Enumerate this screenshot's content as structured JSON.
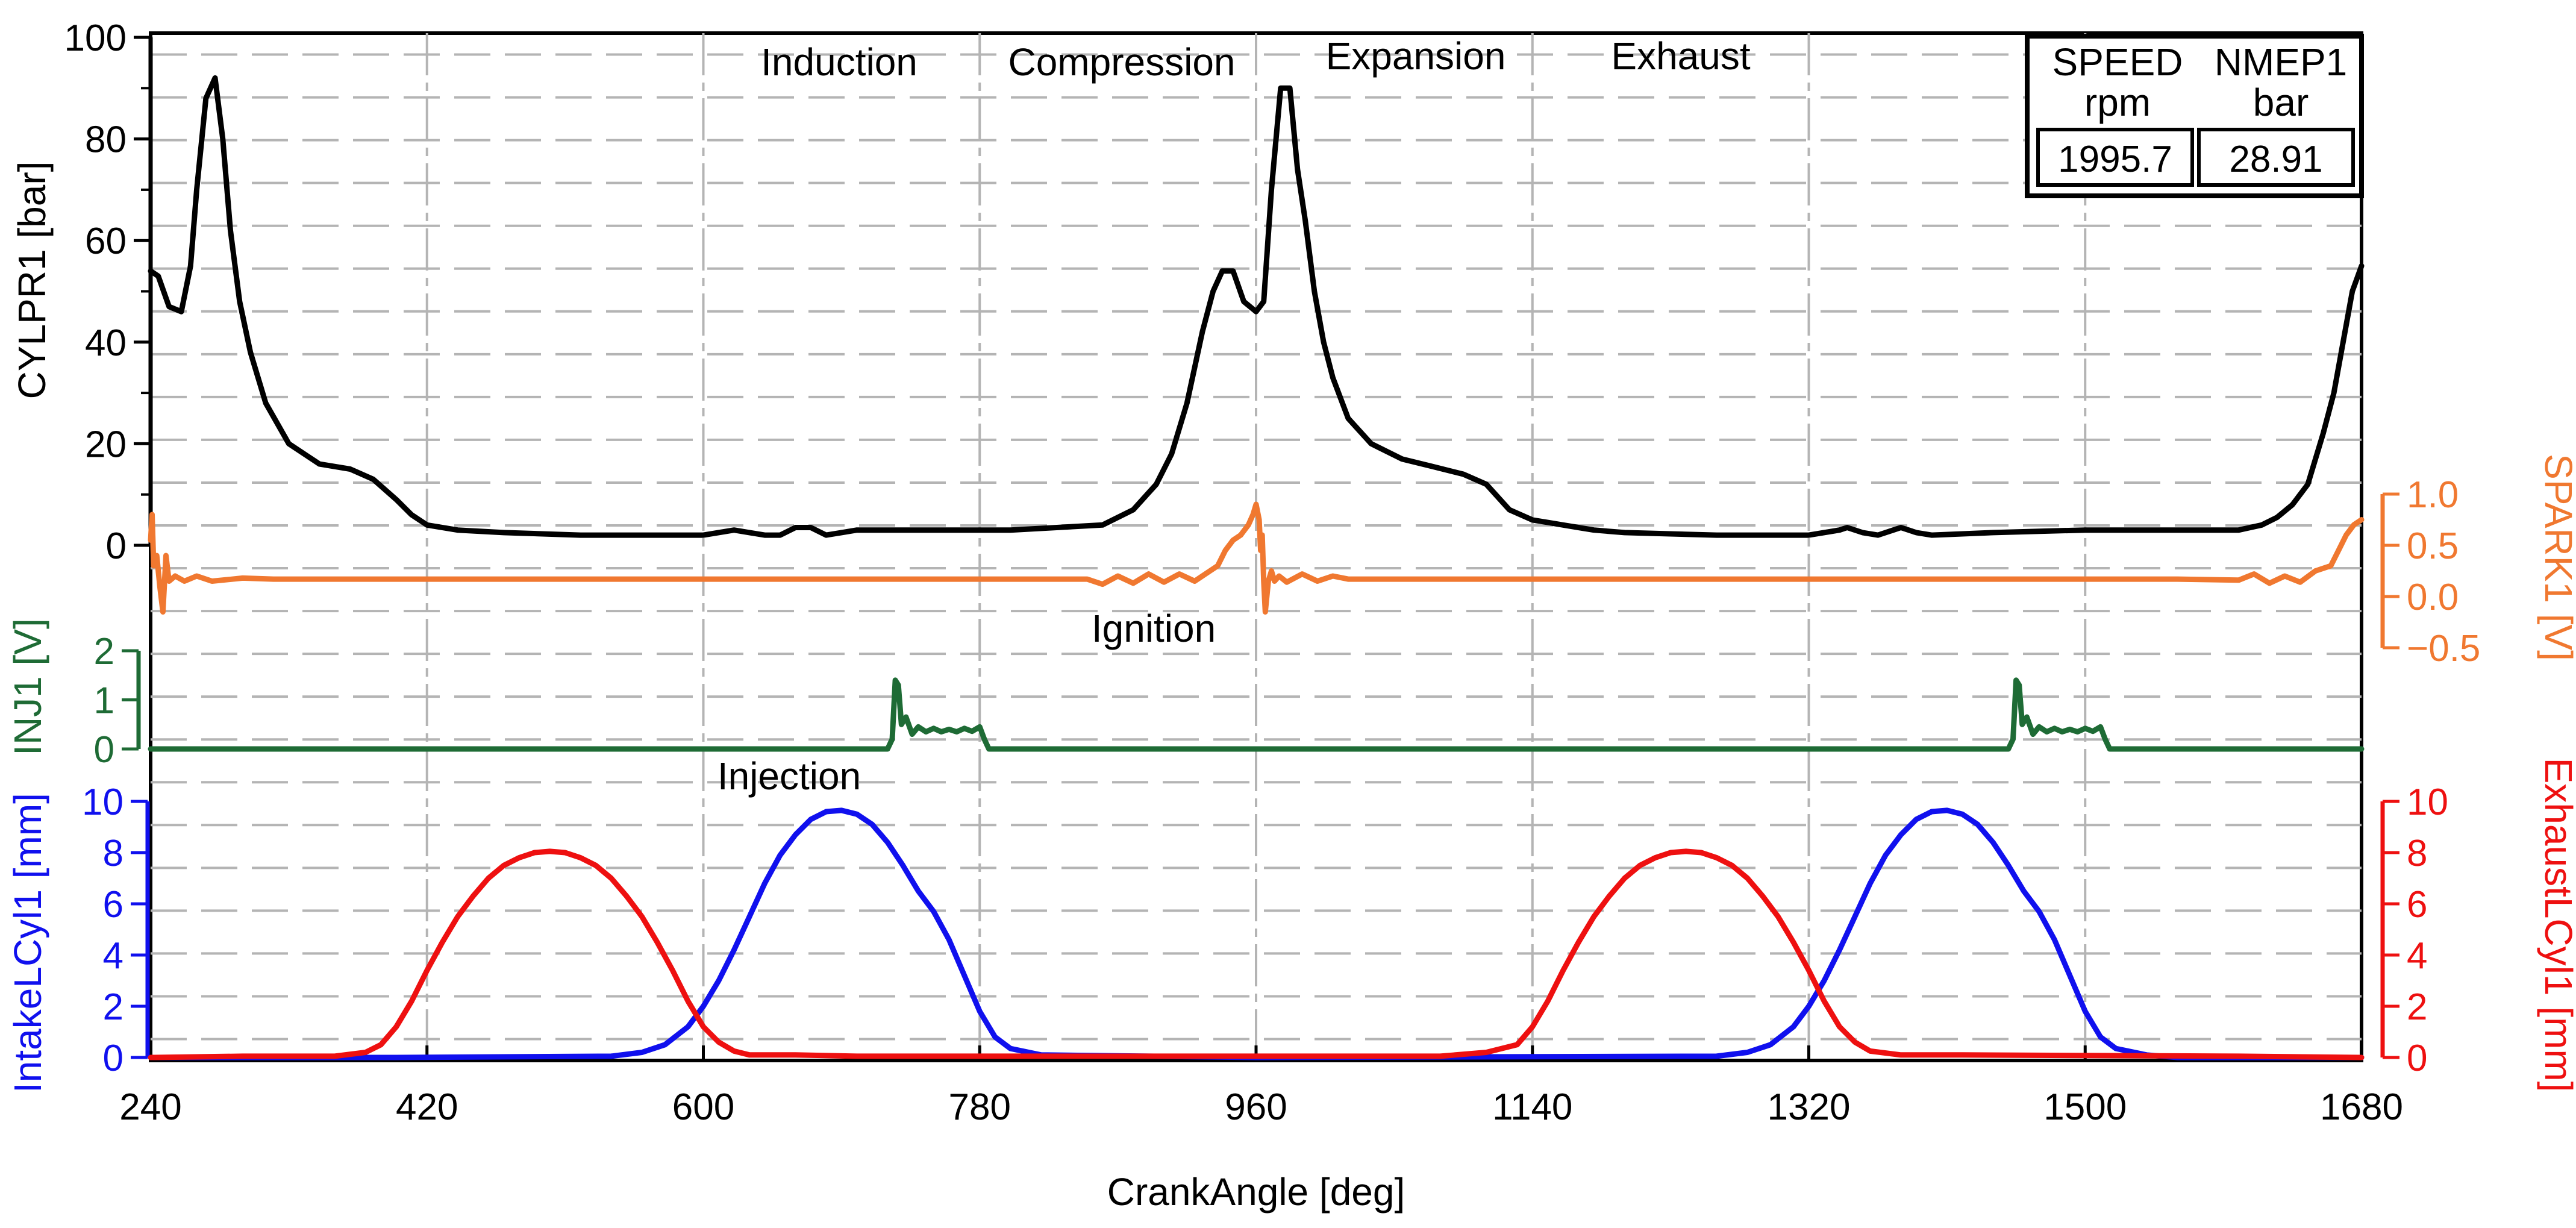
{
  "chart_data": {
    "type": "line",
    "title": "",
    "xlabel": "CrankAngle [deg]",
    "x_range": [
      240,
      1680
    ],
    "x_ticks": [
      240,
      420,
      600,
      780,
      960,
      1140,
      1320,
      1500,
      1680
    ],
    "phase_labels": [
      "Induction",
      "Compression",
      "Expansion",
      "Exhaust"
    ],
    "annotations": [
      "Ignition",
      "Injection"
    ],
    "info_box": {
      "headers": [
        {
          "name": "SPEED",
          "unit": "rpm",
          "value": "1995.7"
        },
        {
          "name": "NMEP1",
          "unit": "bar",
          "value": "28.91"
        }
      ]
    },
    "panels": [
      {
        "id": "cylpr",
        "ylabel": "CYLPR1 [bar]",
        "ylim": [
          0,
          100
        ],
        "y_ticks": [
          "0",
          "20",
          "40",
          "60",
          "80",
          "100"
        ],
        "series": [
          {
            "name": "CYLPR1",
            "color": "#000000",
            "x": [
              240,
              245,
              252,
              260,
              266,
              270,
              276,
              282,
              287,
              292,
              298,
              305,
              315,
              330,
              350,
              370,
              385,
              400,
              410,
              420,
              440,
              470,
              520,
              560,
              600,
              620,
              630,
              640,
              650,
              660,
              670,
              680,
              690,
              700,
              740,
              800,
              860,
              880,
              895,
              905,
              915,
              925,
              932,
              938,
              945,
              952,
              960,
              965,
              970,
              976,
              982,
              987,
              992,
              998,
              1004,
              1010,
              1020,
              1035,
              1055,
              1075,
              1095,
              1110,
              1125,
              1140,
              1150,
              1160,
              1170,
              1180,
              1200,
              1260,
              1300,
              1320,
              1340,
              1345,
              1355,
              1365,
              1375,
              1380,
              1390,
              1400,
              1440,
              1500,
              1560,
              1600,
              1615,
              1625,
              1635,
              1645,
              1655,
              1662,
              1668,
              1674,
              1680
            ],
            "y": [
              54,
              53,
              47,
              46,
              55,
              70,
              88,
              92,
              80,
              62,
              48,
              38,
              28,
              20,
              16,
              15,
              13,
              9,
              6,
              4,
              3,
              2.5,
              2,
              2,
              2,
              3,
              2.5,
              2,
              2,
              3.5,
              3.5,
              2,
              2.5,
              3,
              3,
              3,
              4,
              7,
              12,
              18,
              28,
              42,
              50,
              54,
              54,
              48,
              46,
              48,
              70,
              90,
              90,
              74,
              64,
              50,
              40,
              33,
              25,
              20,
              17,
              15.5,
              14,
              12,
              7,
              5,
              4.5,
              4,
              3.5,
              3,
              2.5,
              2,
              2,
              2,
              3,
              3.5,
              2.5,
              2,
              3,
              3.5,
              2.5,
              2,
              2.5,
              3,
              3,
              3,
              4,
              5.5,
              8,
              12,
              22,
              30,
              40,
              50,
              55
            ]
          }
        ]
      },
      {
        "id": "spark",
        "ylabel": "SPARK1 [V]",
        "ylim": [
          -0.5,
          1.0
        ],
        "y_ticks": [
          "1.0",
          "0.5",
          "0.0",
          "−0.5"
        ],
        "series": [
          {
            "name": "SPARK1",
            "color": "#f07830",
            "x": [
              240,
              241,
              242,
              244,
              246,
              248,
              250,
              252,
              256,
              262,
              270,
              280,
              300,
              320,
              400,
              500,
              600,
              700,
              800,
              850,
              860,
              870,
              880,
              890,
              900,
              910,
              920,
              930,
              935,
              940,
              945,
              950,
              955,
              958,
              960,
              962,
              963,
              964,
              965,
              966,
              968,
              970,
              972,
              975,
              980,
              990,
              1000,
              1010,
              1020,
              1030,
              1040,
              1100,
              1200,
              1300,
              1400,
              1500,
              1560,
              1600,
              1610,
              1620,
              1630,
              1640,
              1650,
              1660,
              1665,
              1670,
              1675,
              1680
            ],
            "y": [
              0.55,
              0.8,
              0.3,
              0.4,
              0.1,
              -0.15,
              0.4,
              0.15,
              0.2,
              0.15,
              0.2,
              0.15,
              0.18,
              0.17,
              0.17,
              0.17,
              0.17,
              0.17,
              0.17,
              0.17,
              0.12,
              0.2,
              0.13,
              0.22,
              0.14,
              0.22,
              0.15,
              0.25,
              0.3,
              0.45,
              0.55,
              0.6,
              0.7,
              0.8,
              0.9,
              0.75,
              0.45,
              0.6,
              0.15,
              -0.15,
              0.15,
              0.25,
              0.15,
              0.2,
              0.14,
              0.22,
              0.15,
              0.2,
              0.17,
              0.17,
              0.17,
              0.17,
              0.17,
              0.17,
              0.17,
              0.17,
              0.17,
              0.16,
              0.22,
              0.13,
              0.2,
              0.14,
              0.25,
              0.3,
              0.45,
              0.6,
              0.7,
              0.75
            ]
          }
        ]
      },
      {
        "id": "inj",
        "ylabel": "INJ1 [V]",
        "ylim": [
          0,
          2
        ],
        "y_ticks": [
          "0",
          "1",
          "2"
        ],
        "series": [
          {
            "name": "INJ1",
            "color": "#1e6b35",
            "x": [
              240,
              720,
              723,
              725,
              727,
              729,
              732,
              736,
              740,
              745,
              750,
              755,
              760,
              765,
              770,
              775,
              780,
              783,
              786,
              790,
              1450,
              1453,
              1455,
              1457,
              1459,
              1462,
              1466,
              1470,
              1475,
              1480,
              1485,
              1490,
              1495,
              1500,
              1505,
              1510,
              1513,
              1516,
              1520,
              1680
            ],
            "y": [
              0,
              0,
              0.2,
              1.4,
              1.3,
              0.5,
              0.65,
              0.3,
              0.45,
              0.35,
              0.42,
              0.35,
              0.4,
              0.35,
              0.42,
              0.36,
              0.45,
              0.2,
              0,
              0,
              0,
              0.2,
              1.4,
              1.3,
              0.5,
              0.65,
              0.3,
              0.45,
              0.35,
              0.42,
              0.35,
              0.4,
              0.35,
              0.42,
              0.36,
              0.45,
              0.2,
              0,
              0,
              0
            ]
          }
        ]
      },
      {
        "id": "lift",
        "ylabel": "IntakeLCyl1 [mm]",
        "ylabel_right": "ExhaustLCyl1 [mm]",
        "ylim": [
          0,
          10
        ],
        "y_ticks": [
          "0",
          "2",
          "4",
          "6",
          "8",
          "10"
        ],
        "series": [
          {
            "name": "IntakeLCyl1",
            "color": "#1010ee",
            "x": [
              240,
              400,
              540,
              560,
              575,
              590,
              600,
              610,
              620,
              630,
              640,
              650,
              660,
              670,
              680,
              690,
              700,
              710,
              720,
              730,
              740,
              750,
              760,
              770,
              780,
              790,
              800,
              820,
              960,
              1260,
              1280,
              1295,
              1310,
              1320,
              1330,
              1340,
              1350,
              1360,
              1370,
              1380,
              1390,
              1400,
              1410,
              1420,
              1430,
              1440,
              1450,
              1460,
              1470,
              1480,
              1490,
              1500,
              1510,
              1520,
              1540,
              1560,
              1680
            ],
            "y": [
              0,
              0,
              0.05,
              0.2,
              0.5,
              1.2,
              2.0,
              3.0,
              4.2,
              5.5,
              6.8,
              7.9,
              8.7,
              9.3,
              9.6,
              9.65,
              9.5,
              9.1,
              8.4,
              7.5,
              6.5,
              5.7,
              4.6,
              3.2,
              1.8,
              0.8,
              0.35,
              0.1,
              0,
              0.05,
              0.2,
              0.5,
              1.2,
              2.0,
              3.0,
              4.2,
              5.5,
              6.8,
              7.9,
              8.7,
              9.3,
              9.6,
              9.65,
              9.5,
              9.1,
              8.4,
              7.5,
              6.5,
              5.7,
              4.6,
              3.2,
              1.8,
              0.8,
              0.35,
              0.1,
              0,
              0
            ]
          },
          {
            "name": "ExhaustLCyl1",
            "color": "#ee1010",
            "x": [
              240,
              300,
              360,
              380,
              390,
              400,
              410,
              420,
              430,
              440,
              450,
              460,
              470,
              480,
              490,
              500,
              510,
              520,
              530,
              540,
              550,
              560,
              570,
              580,
              590,
              600,
              610,
              620,
              630,
              640,
              660,
              700,
              800,
              900,
              1080,
              1110,
              1130,
              1140,
              1150,
              1160,
              1170,
              1180,
              1190,
              1200,
              1210,
              1220,
              1230,
              1240,
              1250,
              1260,
              1270,
              1280,
              1290,
              1300,
              1310,
              1320,
              1330,
              1340,
              1350,
              1360,
              1380,
              1420,
              1600,
              1680
            ],
            "y": [
              0,
              0.05,
              0.05,
              0.2,
              0.5,
              1.2,
              2.2,
              3.4,
              4.5,
              5.5,
              6.3,
              7.0,
              7.5,
              7.8,
              8.0,
              8.05,
              8.0,
              7.8,
              7.5,
              7.0,
              6.3,
              5.5,
              4.5,
              3.4,
              2.2,
              1.2,
              0.6,
              0.25,
              0.1,
              0.1,
              0.1,
              0.05,
              0.05,
              0.05,
              0.05,
              0.2,
              0.5,
              1.2,
              2.2,
              3.4,
              4.5,
              5.5,
              6.3,
              7.0,
              7.5,
              7.8,
              8.0,
              8.05,
              8.0,
              7.8,
              7.5,
              7.0,
              6.3,
              5.5,
              4.5,
              3.4,
              2.2,
              1.2,
              0.6,
              0.25,
              0.1,
              0.1,
              0.05,
              0
            ]
          }
        ]
      }
    ]
  },
  "colors": {
    "cylpr": "#000000",
    "spark": "#f07830",
    "inj": "#1e6b35",
    "intake": "#1010ee",
    "exhaust": "#ee1010",
    "grid": "#b4b4b4"
  }
}
